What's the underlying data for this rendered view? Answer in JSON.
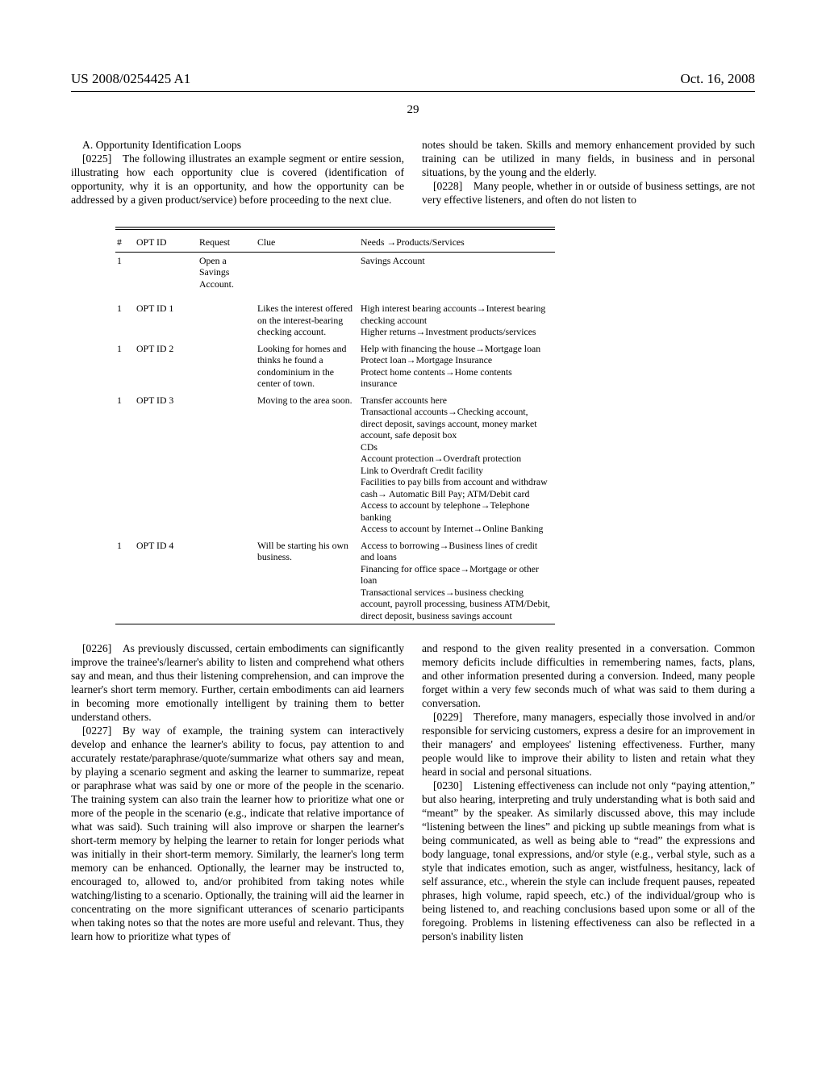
{
  "header": {
    "pub_number": "US 2008/0254425 A1",
    "date": "Oct. 16, 2008",
    "page": "29"
  },
  "section_heading": "A. Opportunity Identification Loops",
  "para_0225": "[0225] The following illustrates an example segment or entire session, illustrating how each opportunity clue is covered (identification of opportunity, why it is an opportunity, and how the opportunity can be addressed by a given product/service) before proceeding to the next clue.",
  "right_top_cont": "notes should be taken. Skills and memory enhancement provided by such training can be utilized in many fields, in business and in personal situations, by the young and the elderly.",
  "para_0228": "[0228] Many people, whether in or outside of business settings, are not very effective listeners, and often do not listen to",
  "table": {
    "columns": [
      "#",
      "OPT ID",
      "Request",
      "Clue",
      "Needs →Products/Services"
    ],
    "rows": [
      {
        "n": "1",
        "opt": "",
        "req": "Open a Savings Account.",
        "clue": "",
        "need": "Savings Account"
      },
      {
        "n": "1",
        "opt": "OPT ID 1",
        "req": "",
        "clue": "Likes the interest offered on the interest-bearing checking account.",
        "need": "High interest bearing accounts→Interest bearing checking account\nHigher returns→Investment products/services"
      },
      {
        "n": "1",
        "opt": "OPT ID 2",
        "req": "",
        "clue": "Looking for homes and thinks he found a condominium in the center of town.",
        "need": "Help with financing the house→Mortgage loan\nProtect loan→Mortgage Insurance\nProtect home contents→Home contents insurance"
      },
      {
        "n": "1",
        "opt": "OPT ID 3",
        "req": "",
        "clue": "Moving to the area soon.",
        "need": "Transfer accounts here\nTransactional accounts→Checking account, direct deposit, savings account, money market account, safe deposit box\nCDs\nAccount protection→Overdraft protection\nLink to Overdraft Credit facility\nFacilities to pay bills from account and withdraw cash→ Automatic Bill Pay; ATM/Debit card\nAccess to account by telephone→Telephone banking\nAccess to account by Internet→Online Banking"
      },
      {
        "n": "1",
        "opt": "OPT ID 4",
        "req": "",
        "clue": "Will be starting his own business.",
        "need": "Access to borrowing→Business lines of credit and loans\nFinancing for office space→Mortgage or other loan\nTransactional services→business checking account, payroll processing, business ATM/Debit, direct deposit, business savings account"
      }
    ]
  },
  "para_0226": "[0226] As previously discussed, certain embodiments can significantly improve the trainee's/learner's ability to listen and comprehend what others say and mean, and thus their listening comprehension, and can improve the learner's short term memory. Further, certain embodiments can aid learners in becoming more emotionally intelligent by training them to better understand others.",
  "para_0227": "[0227] By way of example, the training system can interactively develop and enhance the learner's ability to focus, pay attention to and accurately restate/paraphrase/quote/summarize what others say and mean, by playing a scenario segment and asking the learner to summarize, repeat or paraphrase what was said by one or more of the people in the scenario. The training system can also train the learner how to prioritize what one or more of the people in the scenario (e.g., indicate that relative importance of what was said). Such training will also improve or sharpen the learner's short-term memory by helping the learner to retain for longer periods what was initially in their short-term memory. Similarly, the learner's long term memory can be enhanced. Optionally, the learner may be instructed to, encouraged to, allowed to, and/or prohibited from taking notes while watching/listing to a scenario. Optionally, the training will aid the learner in concentrating on the more significant utterances of scenario participants when taking notes so that the notes are more useful and relevant. Thus, they learn how to prioritize what types of",
  "right_cont2": "and respond to the given reality presented in a conversation. Common memory deficits include difficulties in remembering names, facts, plans, and other information presented during a conversion. Indeed, many people forget within a very few seconds much of what was said to them during a conversation.",
  "para_0229": "[0229] Therefore, many managers, especially those involved in and/or responsible for servicing customers, express a desire for an improvement in their managers' and employees' listening effectiveness. Further, many people would like to improve their ability to listen and retain what they heard in social and personal situations.",
  "para_0230": "[0230] Listening effectiveness can include not only “paying attention,” but also hearing, interpreting and truly understanding what is both said and “meant” by the speaker. As similarly discussed above, this may include “listening between the lines” and picking up subtle meanings from what is being communicated, as well as being able to “read” the expressions and body language, tonal expressions, and/or style (e.g., verbal style, such as a style that indicates emotion, such as anger, wistfulness, hesitancy, lack of self assurance, etc., wherein the style can include frequent pauses, repeated phrases, high volume, rapid speech, etc.) of the individual/group who is being listened to, and reaching conclusions based upon some or all of the foregoing. Problems in listening effectiveness can also be reflected in a person's inability listen"
}
